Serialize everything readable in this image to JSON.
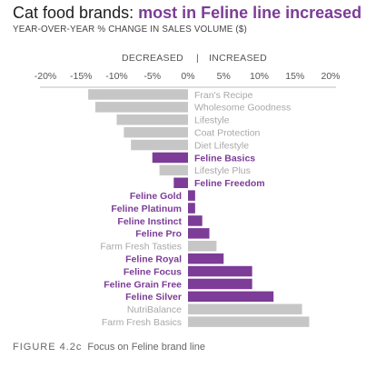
{
  "title": {
    "lead": "Cat food brands: ",
    "highlight": "most in Feline line increased"
  },
  "subtitle": "YEAR-OVER-YEAR % CHANGE IN SALES VOLUME ($)",
  "direction_labels": {
    "decreased": "DECREASED",
    "separator": "|",
    "increased": "INCREASED"
  },
  "caption": {
    "figure": "FIGURE 4.2c",
    "text": "Focus on Feline brand line"
  },
  "colors": {
    "highlight": "#7c3c97",
    "muted_bar": "#c6c6c6",
    "muted_label": "#a8a8a8",
    "highlight_label": "#7c3c97",
    "tick": "#555555",
    "axis_line": "#bdbdbd"
  },
  "chart_data": {
    "type": "bar",
    "orientation": "horizontal",
    "xlim": [
      -20,
      20
    ],
    "x_ticks": [
      -20,
      -15,
      -10,
      -5,
      0,
      5,
      10,
      15,
      20
    ],
    "x_tick_labels": [
      "-20%",
      "-15%",
      "-10%",
      "-5%",
      "0%",
      "5%",
      "10%",
      "15%",
      "20%"
    ],
    "grid": false,
    "categories": [
      "Fran's Recipe",
      "Wholesome Goodness",
      "Lifestyle",
      "Coat Protection",
      "Diet Lifestyle",
      "Feline Basics",
      "Lifestyle Plus",
      "Feline Freedom",
      "Feline Gold",
      "Feline Platinum",
      "Feline Instinct",
      "Feline Pro",
      "Farm Fresh Tasties",
      "Feline Royal",
      "Feline Focus",
      "Feline Grain Free",
      "Feline Silver",
      "NutriBalance",
      "Farm Fresh Basics"
    ],
    "values": [
      -14,
      -13,
      -10,
      -9,
      -8,
      -5,
      -4,
      -2,
      1,
      1,
      2,
      3,
      4,
      5,
      9,
      9,
      12,
      16,
      17
    ],
    "highlighted": [
      false,
      false,
      false,
      false,
      false,
      true,
      false,
      true,
      true,
      true,
      true,
      true,
      false,
      true,
      true,
      true,
      true,
      false,
      false
    ]
  }
}
